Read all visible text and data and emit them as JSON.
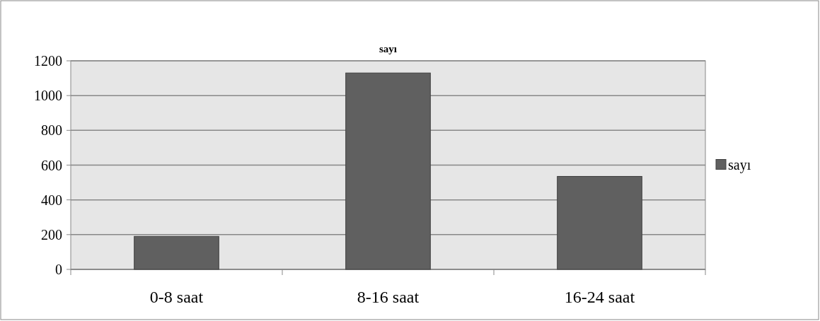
{
  "chart_data": {
    "type": "bar",
    "title": "sayı",
    "categories": [
      "0-8 saat",
      "8-16 saat",
      "16-24 saat"
    ],
    "series": [
      {
        "name": "sayı",
        "color": "#606060",
        "values": [
          190,
          1130,
          535
        ]
      }
    ],
    "ylim": [
      0,
      1200
    ],
    "yticks": [
      0,
      200,
      400,
      600,
      800,
      1000,
      1200
    ],
    "grid": "y",
    "legend": "right"
  }
}
